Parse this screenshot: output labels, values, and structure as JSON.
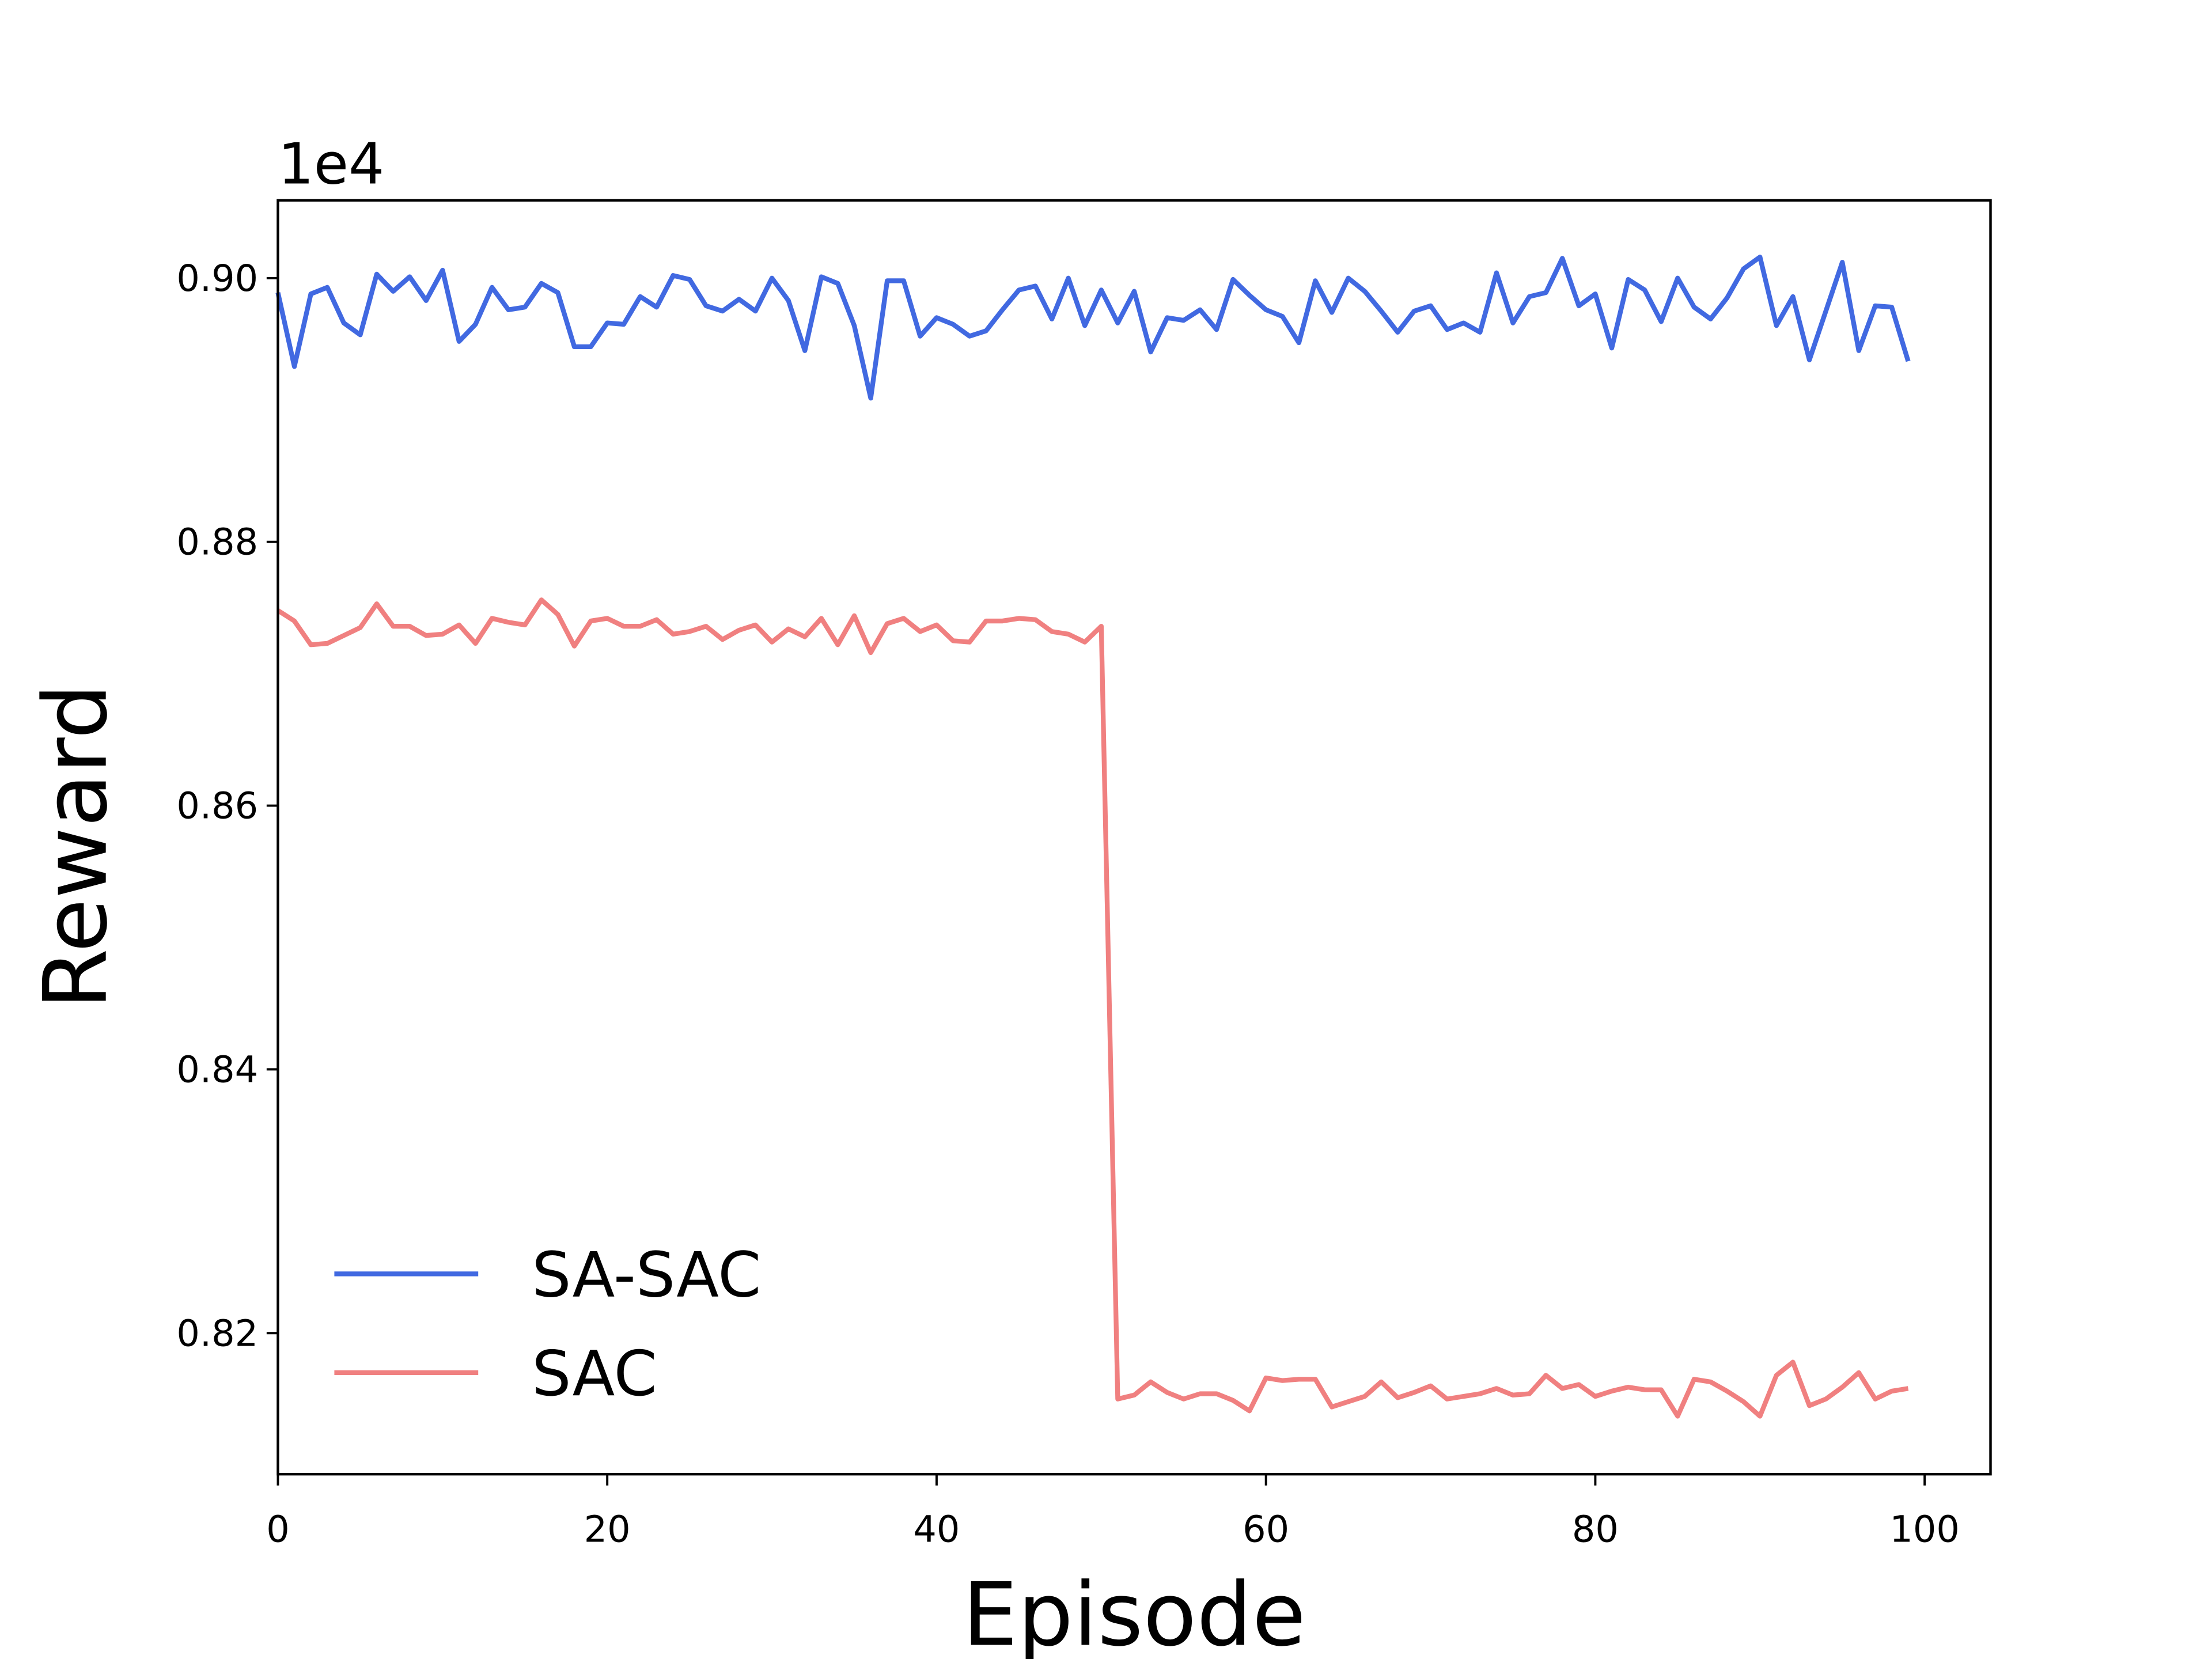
{
  "chart_data": {
    "type": "line",
    "x_label": "Episode",
    "y_label": "Reward",
    "y_offset_label": "1e4",
    "x": [
      0,
      1,
      2,
      3,
      4,
      5,
      6,
      7,
      8,
      9,
      10,
      11,
      12,
      13,
      14,
      15,
      16,
      17,
      18,
      19,
      20,
      21,
      22,
      23,
      24,
      25,
      26,
      27,
      28,
      29,
      30,
      31,
      32,
      33,
      34,
      35,
      36,
      37,
      38,
      39,
      40,
      41,
      42,
      43,
      44,
      45,
      46,
      47,
      48,
      49,
      50,
      51,
      52,
      53,
      54,
      55,
      56,
      57,
      58,
      59,
      60,
      61,
      62,
      63,
      64,
      65,
      66,
      67,
      68,
      69,
      70,
      71,
      72,
      73,
      74,
      75,
      76,
      77,
      78,
      79,
      80,
      81,
      82,
      83,
      84,
      85,
      86,
      87,
      88,
      89,
      90,
      91,
      92,
      93,
      94,
      95,
      96,
      97,
      98,
      99
    ],
    "series": [
      {
        "name": "SA-SAC",
        "color": "#4169e1",
        "values": [
          0.8989,
          0.8933,
          0.8988,
          0.8993,
          0.8966,
          0.8957,
          0.9003,
          0.899,
          0.9001,
          0.8983,
          0.9006,
          0.8952,
          0.8965,
          0.8993,
          0.8976,
          0.8978,
          0.8996,
          0.8989,
          0.8948,
          0.8948,
          0.8966,
          0.8965,
          0.8986,
          0.8978,
          0.9002,
          0.8999,
          0.8979,
          0.8975,
          0.8984,
          0.8975,
          0.9,
          0.8983,
          0.8945,
          0.9001,
          0.8996,
          0.8964,
          0.8909,
          0.8998,
          0.8998,
          0.8956,
          0.897,
          0.8965,
          0.8956,
          0.896,
          0.8976,
          0.8991,
          0.8994,
          0.8969,
          0.9,
          0.8964,
          0.8991,
          0.8966,
          0.899,
          0.8944,
          0.897,
          0.8968,
          0.8976,
          0.8961,
          0.8999,
          0.8987,
          0.8976,
          0.8971,
          0.8951,
          0.8998,
          0.8974,
          0.9,
          0.899,
          0.8975,
          0.8959,
          0.8975,
          0.8979,
          0.8961,
          0.8966,
          0.8959,
          0.9004,
          0.8966,
          0.8986,
          0.8989,
          0.9015,
          0.8979,
          0.8988,
          0.8947,
          0.8999,
          0.8991,
          0.8967,
          0.9,
          0.8978,
          0.8969,
          0.8985,
          0.9007,
          0.9016,
          0.8964,
          0.8986,
          0.8938,
          0.8975,
          0.9012,
          0.8945,
          0.8979,
          0.8978,
          0.8937
        ]
      },
      {
        "name": "SAC",
        "color": "#f08080",
        "values": [
          0.8748,
          0.874,
          0.8722,
          0.8723,
          0.8729,
          0.8735,
          0.8753,
          0.8736,
          0.8736,
          0.8729,
          0.873,
          0.8737,
          0.8723,
          0.8742,
          0.8739,
          0.8737,
          0.8756,
          0.8745,
          0.8721,
          0.874,
          0.8742,
          0.8736,
          0.8736,
          0.8741,
          0.873,
          0.8732,
          0.8736,
          0.8726,
          0.8733,
          0.8737,
          0.8724,
          0.8734,
          0.8728,
          0.8742,
          0.8722,
          0.8744,
          0.8716,
          0.8738,
          0.8742,
          0.8732,
          0.8737,
          0.8725,
          0.8724,
          0.874,
          0.874,
          0.8742,
          0.8741,
          0.8732,
          0.873,
          0.8724,
          0.8736,
          0.815,
          0.8153,
          0.8163,
          0.8155,
          0.815,
          0.8154,
          0.8154,
          0.8149,
          0.8141,
          0.8166,
          0.8164,
          0.8165,
          0.8165,
          0.8144,
          0.8148,
          0.8152,
          0.8163,
          0.8151,
          0.8155,
          0.816,
          0.815,
          0.8152,
          0.8154,
          0.8158,
          0.8153,
          0.8154,
          0.8168,
          0.8158,
          0.8161,
          0.8152,
          0.8156,
          0.8159,
          0.8157,
          0.8157,
          0.8137,
          0.8165,
          0.8163,
          0.8156,
          0.8148,
          0.8137,
          0.8168,
          0.8178,
          0.8145,
          0.815,
          0.8159,
          0.817,
          0.815,
          0.8156,
          0.8158
        ]
      }
    ],
    "xlim": [
      0,
      104
    ],
    "xticks": [
      0,
      20,
      40,
      60,
      80,
      100
    ],
    "ylim": [
      0.8093,
      0.9059
    ],
    "yticks": [
      {
        "value": 0.82,
        "label": "0.82"
      },
      {
        "value": 0.84,
        "label": "0.84"
      },
      {
        "value": 0.86,
        "label": "0.86"
      },
      {
        "value": 0.88,
        "label": "0.88"
      },
      {
        "value": 0.9,
        "label": "0.90"
      }
    ],
    "grid": false,
    "legend": "lower left"
  }
}
